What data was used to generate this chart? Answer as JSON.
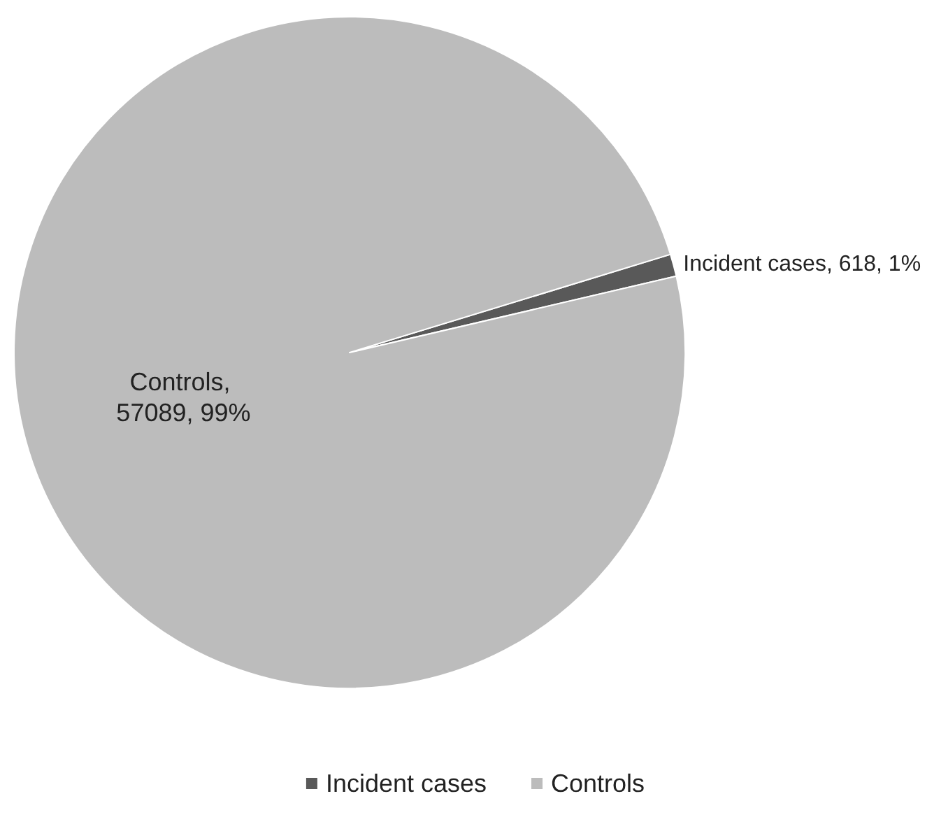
{
  "chart_data": {
    "type": "pie",
    "categories": [
      "Incident cases",
      "Controls"
    ],
    "values": [
      618,
      57089
    ],
    "colors": [
      "#595959",
      "#bcbcbc"
    ],
    "value_labels": [
      "Incident cases, 618, 1%",
      "Controls, 57089, 99%"
    ],
    "legend": "bottom"
  }
}
